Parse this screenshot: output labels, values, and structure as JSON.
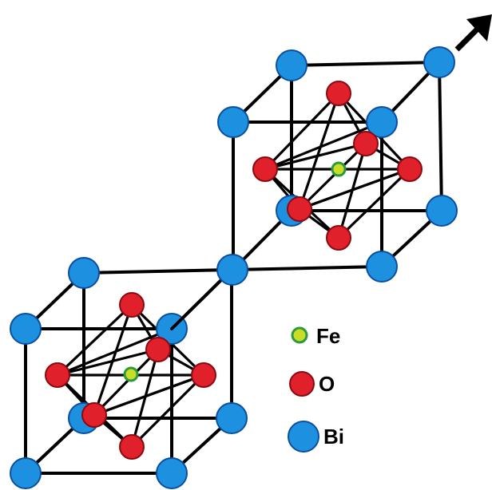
{
  "legend": {
    "items": [
      {
        "label": "Fe",
        "atom": "fe"
      },
      {
        "label": "O",
        "atom": "o"
      },
      {
        "label": "Bi",
        "atom": "bi"
      }
    ]
  },
  "atoms": {
    "bi": {
      "fill": "#1e90e0",
      "stroke": "#0a4fa0"
    },
    "o": {
      "fill": "#e0202a",
      "stroke": "#8a0a12"
    },
    "fe": {
      "fill": "#c8dc28",
      "stroke": "#2a9a3a"
    }
  },
  "colors": {
    "bond": "#000000",
    "arrow": "#000000"
  }
}
